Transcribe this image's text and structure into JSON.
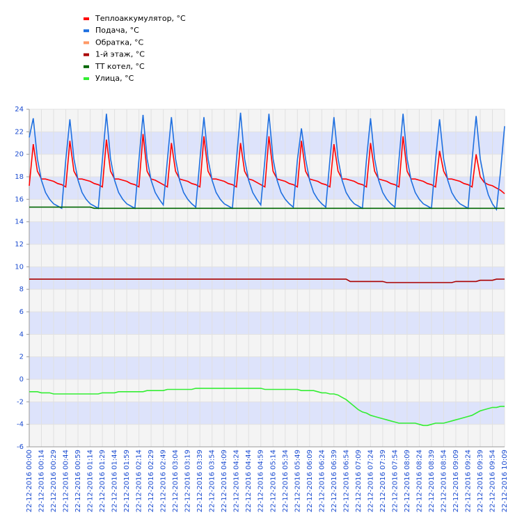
{
  "chart_data": {
    "type": "line",
    "legend": "top-left",
    "grid": true,
    "band_colors": [
      "#f4f4f4",
      "#dde3fb"
    ],
    "ylim": [
      -6,
      24
    ],
    "yticks": [
      -6,
      -4,
      -2,
      0,
      2,
      4,
      6,
      8,
      10,
      12,
      14,
      16,
      18,
      20,
      22,
      24
    ],
    "categories": [
      "22-12-2016 00:00",
      null,
      null,
      "22-12-2016 00:14",
      null,
      null,
      "22-12-2016 00:29",
      null,
      null,
      "22-12-2016 00:44",
      null,
      null,
      "22-12-2016 00:59",
      null,
      null,
      "22-12-2016 01:14",
      null,
      null,
      "22-12-2016 01:29",
      null,
      null,
      "22-12-2016 01:44",
      null,
      null,
      "22-12-2016 01:59",
      null,
      null,
      "22-12-2016 02:14",
      null,
      null,
      "22-12-2016 02:29",
      null,
      null,
      "22-12-2016 02:49",
      null,
      null,
      "22-12-2016 03:04",
      null,
      null,
      "22-12-2016 03:19",
      null,
      null,
      "22-12-2016 03:39",
      null,
      null,
      "22-12-2016 03:54",
      null,
      null,
      "22-12-2016 04:09",
      null,
      null,
      "22-12-2016 04:24",
      null,
      null,
      "22-12-2016 04:44",
      null,
      null,
      "22-12-2016 04:59",
      null,
      null,
      "22-12-2016 05:14",
      null,
      null,
      "22-12-2016 05:34",
      null,
      null,
      "22-12-2016 05:49",
      null,
      null,
      "22-12-2016 06:09",
      null,
      null,
      "22-12-2016 06:24",
      null,
      null,
      "22-12-2016 06:39",
      null,
      null,
      "22-12-2016 06:54",
      null,
      null,
      "22-12-2016 07:09",
      null,
      null,
      "22-12-2016 07:24",
      null,
      null,
      "22-12-2016 07:39",
      null,
      null,
      "22-12-2016 07:54",
      null,
      null,
      "22-12-2016 08:09",
      null,
      null,
      "22-12-2016 08:24",
      null,
      null,
      "22-12-2016 08:39",
      null,
      null,
      "22-12-2016 08:54",
      null,
      null,
      "22-12-2016 09:09",
      null,
      null,
      "22-12-2016 09:24",
      null,
      null,
      "22-12-2016 09:39",
      null,
      null,
      "22-12-2016 09:54",
      null,
      null,
      "22-12-2016 10:09"
    ],
    "series": [
      {
        "name": "Теплоаккумулятор, °C",
        "color": "#ff0000",
        "values": [
          17.2,
          20.9,
          18.5,
          17.8,
          17.8,
          17.7,
          17.6,
          17.4,
          17.3,
          17.1,
          21.2,
          18.5,
          17.8,
          17.8,
          17.7,
          17.6,
          17.4,
          17.3,
          17.1,
          21.3,
          18.5,
          17.8,
          17.8,
          17.7,
          17.6,
          17.4,
          17.3,
          17.1,
          21.8,
          18.5,
          17.8,
          17.7,
          17.5,
          17.3,
          17.1,
          21.0,
          18.5,
          17.8,
          17.7,
          17.6,
          17.4,
          17.3,
          17.1,
          21.6,
          18.5,
          17.8,
          17.8,
          17.7,
          17.6,
          17.4,
          17.3,
          17.1,
          21.0,
          18.5,
          17.8,
          17.7,
          17.5,
          17.3,
          17.1,
          21.6,
          18.5,
          17.8,
          17.7,
          17.6,
          17.4,
          17.3,
          17.1,
          21.2,
          18.5,
          17.8,
          17.7,
          17.6,
          17.4,
          17.3,
          17.1,
          20.9,
          18.5,
          17.8,
          17.8,
          17.7,
          17.6,
          17.4,
          17.3,
          17.1,
          21.0,
          18.5,
          17.8,
          17.7,
          17.6,
          17.4,
          17.3,
          17.1,
          21.6,
          18.5,
          17.8,
          17.8,
          17.7,
          17.6,
          17.4,
          17.3,
          17.1,
          20.3,
          18.5,
          17.8,
          17.8,
          17.7,
          17.6,
          17.4,
          17.3,
          17.1,
          20.0,
          18.0,
          17.5,
          17.3,
          17.2,
          17.0,
          16.8,
          16.5
        ]
      },
      {
        "name": "Подача, °C",
        "color": "#1e6fe0",
        "values": [
          21.5,
          23.2,
          19.6,
          17.7,
          16.6,
          16.0,
          15.6,
          15.4,
          15.2,
          19.5,
          23.1,
          19.6,
          17.7,
          16.6,
          16.0,
          15.6,
          15.4,
          15.2,
          19.5,
          23.6,
          19.6,
          17.7,
          16.6,
          16.0,
          15.6,
          15.4,
          15.2,
          19.5,
          23.5,
          19.6,
          17.7,
          16.6,
          16.0,
          15.5,
          19.5,
          23.3,
          19.6,
          17.7,
          16.6,
          16.0,
          15.6,
          15.3,
          19.5,
          23.3,
          19.6,
          17.7,
          16.6,
          16.0,
          15.6,
          15.4,
          15.2,
          19.5,
          23.7,
          19.6,
          17.7,
          16.6,
          16.0,
          15.5,
          19.5,
          23.6,
          19.6,
          17.7,
          16.6,
          16.0,
          15.6,
          15.3,
          19.5,
          22.3,
          19.6,
          17.7,
          16.6,
          16.0,
          15.6,
          15.3,
          19.5,
          23.3,
          19.6,
          17.7,
          16.6,
          16.0,
          15.6,
          15.4,
          15.2,
          19.5,
          23.2,
          19.6,
          17.7,
          16.6,
          16.0,
          15.6,
          15.3,
          19.5,
          23.6,
          19.6,
          17.7,
          16.6,
          16.0,
          15.6,
          15.4,
          15.2,
          19.5,
          23.1,
          19.6,
          17.7,
          16.6,
          16.0,
          15.6,
          15.4,
          15.2,
          19.5,
          23.4,
          19.6,
          17.7,
          16.4,
          15.6,
          15.1,
          18.5,
          22.5
        ]
      },
      {
        "name": "Обратка, °C",
        "color": "#ff9966",
        "values": [
          null,
          null,
          null,
          null,
          null,
          null,
          null,
          null,
          null,
          null,
          null,
          null,
          null,
          null,
          null,
          null,
          null,
          null,
          null,
          null,
          null,
          null,
          null,
          null,
          null,
          null,
          null,
          null,
          null,
          null,
          null,
          null,
          null,
          null,
          null,
          null,
          null,
          null,
          null,
          null,
          null,
          null,
          null,
          null,
          null,
          null,
          null,
          null,
          null,
          null,
          null,
          null,
          null,
          null,
          null,
          null,
          null,
          null,
          null,
          null,
          null,
          null,
          null,
          null,
          null,
          null,
          null,
          null,
          null,
          null,
          null,
          null,
          null,
          null,
          null,
          null,
          null,
          null,
          null,
          null,
          null,
          null,
          null,
          null,
          null,
          null,
          null,
          null,
          null,
          null,
          null,
          null,
          null,
          null,
          null,
          null,
          null,
          null,
          null,
          null,
          null,
          null,
          null,
          null,
          null,
          null,
          null,
          null,
          null,
          null,
          null,
          null,
          null,
          null,
          null,
          null,
          null,
          null
        ]
      },
      {
        "name": "1-й этаж, °C",
        "color": "#aa0000",
        "values": [
          8.9,
          8.9,
          8.9,
          8.9,
          8.9,
          8.9,
          8.9,
          8.9,
          8.9,
          8.9,
          8.9,
          8.9,
          8.9,
          8.9,
          8.9,
          8.9,
          8.9,
          8.9,
          8.9,
          8.9,
          8.9,
          8.9,
          8.9,
          8.9,
          8.9,
          8.9,
          8.9,
          8.9,
          8.9,
          8.9,
          8.9,
          8.9,
          8.9,
          8.9,
          8.9,
          8.9,
          8.9,
          8.9,
          8.9,
          8.9,
          8.9,
          8.9,
          8.9,
          8.9,
          8.9,
          8.9,
          8.9,
          8.9,
          8.9,
          8.9,
          8.9,
          8.9,
          8.9,
          8.9,
          8.9,
          8.9,
          8.9,
          8.9,
          8.9,
          8.9,
          8.9,
          8.9,
          8.9,
          8.9,
          8.9,
          8.9,
          8.9,
          8.9,
          8.9,
          8.9,
          8.9,
          8.9,
          8.9,
          8.9,
          8.9,
          8.9,
          8.9,
          8.9,
          8.9,
          8.7,
          8.7,
          8.7,
          8.7,
          8.7,
          8.7,
          8.7,
          8.7,
          8.7,
          8.6,
          8.6,
          8.6,
          8.6,
          8.6,
          8.6,
          8.6,
          8.6,
          8.6,
          8.6,
          8.6,
          8.6,
          8.6,
          8.6,
          8.6,
          8.6,
          8.6,
          8.7,
          8.7,
          8.7,
          8.7,
          8.7,
          8.7,
          8.8,
          8.8,
          8.8,
          8.8,
          8.9,
          8.9,
          8.9
        ]
      },
      {
        "name": "ТТ котел, °C",
        "color": "#006600",
        "values": [
          15.3,
          15.3,
          15.3,
          15.3,
          15.3,
          15.3,
          15.3,
          15.3,
          15.3,
          15.3,
          15.3,
          15.3,
          15.3,
          15.3,
          15.3,
          15.3,
          15.2,
          15.2,
          15.2,
          15.2,
          15.2,
          15.2,
          15.2,
          15.2,
          15.2,
          15.2,
          15.2,
          15.2,
          15.2,
          15.2,
          15.2,
          15.2,
          15.2,
          15.2,
          15.2,
          15.2,
          15.2,
          15.2,
          15.2,
          15.2,
          15.2,
          15.2,
          15.2,
          15.2,
          15.2,
          15.2,
          15.2,
          15.2,
          15.2,
          15.2,
          15.2,
          15.2,
          15.2,
          15.2,
          15.2,
          15.2,
          15.2,
          15.2,
          15.2,
          15.2,
          15.2,
          15.2,
          15.2,
          15.2,
          15.2,
          15.2,
          15.2,
          15.2,
          15.2,
          15.2,
          15.2,
          15.2,
          15.2,
          15.2,
          15.2,
          15.2,
          15.2,
          15.2,
          15.2,
          15.2,
          15.2,
          15.2,
          15.2,
          15.2,
          15.2,
          15.2,
          15.2,
          15.2,
          15.2,
          15.2,
          15.2,
          15.2,
          15.2,
          15.2,
          15.2,
          15.2,
          15.2,
          15.2,
          15.2,
          15.2,
          15.2,
          15.2,
          15.2,
          15.2,
          15.2,
          15.2,
          15.2,
          15.2,
          15.2,
          15.2,
          15.2,
          15.2,
          15.2,
          15.2,
          15.2,
          15.2,
          15.2,
          15.2
        ]
      },
      {
        "name": "Улица, °C",
        "color": "#33ee33",
        "values": [
          -1.1,
          -1.1,
          -1.1,
          -1.2,
          -1.2,
          -1.2,
          -1.3,
          -1.3,
          -1.3,
          -1.3,
          -1.3,
          -1.3,
          -1.3,
          -1.3,
          -1.3,
          -1.3,
          -1.3,
          -1.3,
          -1.2,
          -1.2,
          -1.2,
          -1.2,
          -1.1,
          -1.1,
          -1.1,
          -1.1,
          -1.1,
          -1.1,
          -1.1,
          -1.0,
          -1.0,
          -1.0,
          -1.0,
          -1.0,
          -0.9,
          -0.9,
          -0.9,
          -0.9,
          -0.9,
          -0.9,
          -0.9,
          -0.8,
          -0.8,
          -0.8,
          -0.8,
          -0.8,
          -0.8,
          -0.8,
          -0.8,
          -0.8,
          -0.8,
          -0.8,
          -0.8,
          -0.8,
          -0.8,
          -0.8,
          -0.8,
          -0.8,
          -0.9,
          -0.9,
          -0.9,
          -0.9,
          -0.9,
          -0.9,
          -0.9,
          -0.9,
          -0.9,
          -1.0,
          -1.0,
          -1.0,
          -1.0,
          -1.1,
          -1.2,
          -1.2,
          -1.3,
          -1.3,
          -1.4,
          -1.6,
          -1.8,
          -2.1,
          -2.4,
          -2.7,
          -2.9,
          -3.0,
          -3.2,
          -3.3,
          -3.4,
          -3.5,
          -3.6,
          -3.7,
          -3.8,
          -3.9,
          -3.9,
          -3.9,
          -3.9,
          -3.9,
          -4.0,
          -4.1,
          -4.1,
          -4.0,
          -3.9,
          -3.9,
          -3.9,
          -3.8,
          -3.7,
          -3.6,
          -3.5,
          -3.4,
          -3.3,
          -3.2,
          -3.0,
          -2.8,
          -2.7,
          -2.6,
          -2.5,
          -2.5,
          -2.4,
          -2.4
        ]
      }
    ]
  }
}
